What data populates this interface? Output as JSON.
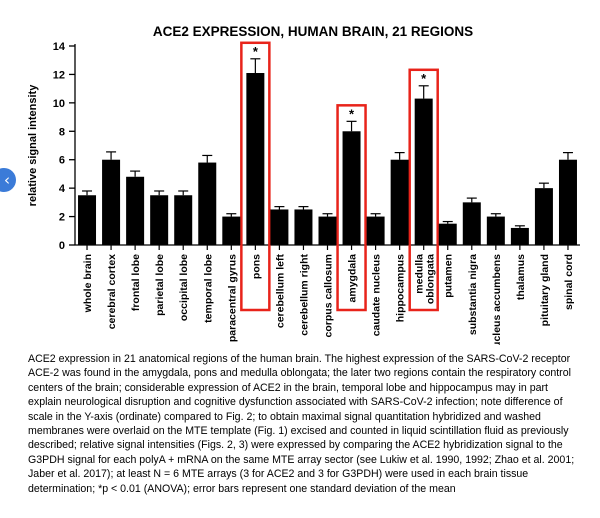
{
  "chart_data": {
    "type": "bar",
    "title": "ACE2 EXPRESSION, HUMAN BRAIN, 21 REGIONS",
    "xlabel": "",
    "ylabel": "relative signal intensity",
    "ylim": [
      0,
      14
    ],
    "yticks": [
      "0",
      "2",
      "4",
      "6",
      "8",
      "10",
      "12",
      "14"
    ],
    "categories": [
      "whole brain",
      "cerebral cortex",
      "frontal lobe",
      "parietal lobe",
      "occipital lobe",
      "temporal lobe",
      "paracentral gyrus",
      "pons",
      "cerebellum left",
      "cerebellum right",
      "corpus callosum",
      "amygdala",
      "caudate nucleus",
      "hippocampus",
      "medulla oblongata",
      "putamen",
      "substantia nigra",
      "nucleus accumbens",
      "thalamus",
      "pituitary gland",
      "spinal cord"
    ],
    "values": [
      3.5,
      6.0,
      4.8,
      3.5,
      3.5,
      5.8,
      2.0,
      12.1,
      2.5,
      2.5,
      2.0,
      8.0,
      2.0,
      6.0,
      10.3,
      1.5,
      3.0,
      2.0,
      1.2,
      4.0,
      6.0
    ],
    "errors": [
      0.3,
      0.55,
      0.4,
      0.3,
      0.3,
      0.5,
      0.2,
      1.0,
      0.2,
      0.2,
      0.2,
      0.7,
      0.2,
      0.5,
      0.9,
      0.15,
      0.3,
      0.2,
      0.15,
      0.35,
      0.5
    ],
    "highlighted": [
      "pons",
      "amygdala",
      "medulla oblongata"
    ],
    "significance_marker": "*",
    "bar_color": "#000000",
    "highlight_color": "#e8231a"
  },
  "nav": {
    "prev_icon": "‹"
  },
  "caption": "ACE2 expression in 21 anatomical regions of the human brain. The highest expression of the SARS-CoV-2 receptor ACE-2 was found in the amygdala, pons and medulla oblongata; the later two regions contain the respiratory control centers of the brain; considerable expression of ACE2 in the brain, temporal lobe and hippocampus may in part explain neurological disruption and cognitive dysfunction associated with SARS-CoV-2 infection; note difference of scale in the Y-axis (ordinate) compared to Fig. 2; to obtain maximal signal quantitation hybridized and washed membranes were overlaid on the MTE template (Fig. 1) excised and counted in liquid scintillation fluid as previously described; relative signal intensities (Figs. 2, 3) were expressed by comparing the ACE2 hybridization signal to the G3PDH signal for each polyA + mRNA on the same MTE array sector (see Lukiw et al. 1990, 1992; Zhao et al. 2001; Jaber et al. 2017); at least N = 6 MTE arrays (3 for ACE2 and 3 for G3PDH) were used in each brain tissue determination; *p < 0.01 (ANOVA); error bars represent one standard deviation of the mean"
}
